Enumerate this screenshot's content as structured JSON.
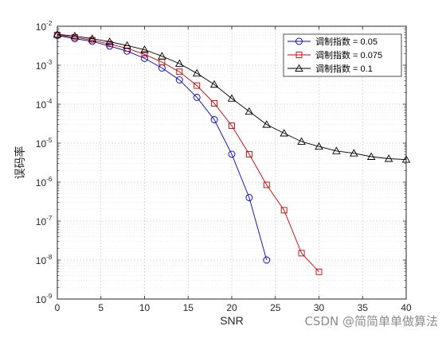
{
  "chart_data": {
    "type": "line",
    "xlabel": "SNR",
    "ylabel": "误码率",
    "y_scale": "log",
    "xlim": [
      0,
      40
    ],
    "ylim": [
      1e-09,
      0.01
    ],
    "x_ticks": [
      0,
      5,
      10,
      15,
      20,
      25,
      30,
      35,
      40
    ],
    "y_ticks": [
      {
        "value": 1e-09,
        "base": "10",
        "exp": "-9"
      },
      {
        "value": 1e-08,
        "base": "10",
        "exp": "-8"
      },
      {
        "value": 1e-07,
        "base": "10",
        "exp": "-7"
      },
      {
        "value": 1e-06,
        "base": "10",
        "exp": "-6"
      },
      {
        "value": 1e-05,
        "base": "10",
        "exp": "-5"
      },
      {
        "value": 0.0001,
        "base": "10",
        "exp": "-4"
      },
      {
        "value": 0.001,
        "base": "10",
        "exp": "-3"
      },
      {
        "value": 0.01,
        "base": "10",
        "exp": "-2"
      }
    ],
    "grid": true,
    "minor_grid": true,
    "legend_position": "top-right",
    "series": [
      {
        "name": "调制指数 = 0.05",
        "color": "#0000cc",
        "marker": "circle",
        "x": [
          0,
          2,
          4,
          6,
          8,
          10,
          12,
          14,
          16,
          18,
          20,
          22,
          24
        ],
        "y": [
          0.0058,
          0.0048,
          0.0041,
          0.0031,
          0.0023,
          0.0015,
          0.00085,
          0.00042,
          0.00015,
          4e-05,
          5.2e-06,
          4e-07,
          1e-08
        ]
      },
      {
        "name": "调制指数 = 0.075",
        "color": "#cc0000",
        "marker": "square",
        "x": [
          0,
          2,
          4,
          6,
          8,
          10,
          12,
          14,
          16,
          18,
          20,
          22,
          24,
          26,
          28,
          30
        ],
        "y": [
          0.006,
          0.0052,
          0.0044,
          0.0035,
          0.0027,
          0.0019,
          0.0012,
          0.00068,
          0.0003,
          0.000105,
          2.8e-05,
          5.2e-06,
          8.5e-07,
          1.9e-07,
          1.5e-08,
          5e-09
        ]
      },
      {
        "name": "调制指数 = 0.1",
        "color": "#000000",
        "marker": "triangle",
        "x": [
          0,
          2,
          4,
          6,
          8,
          10,
          12,
          14,
          16,
          18,
          20,
          22,
          24,
          26,
          28,
          30,
          32,
          34,
          36,
          38,
          40
        ],
        "y": [
          0.0062,
          0.0056,
          0.0048,
          0.004,
          0.0032,
          0.0025,
          0.0017,
          0.0011,
          0.00062,
          0.00032,
          0.00014,
          6.5e-05,
          3e-05,
          1.8e-05,
          1.1e-05,
          8.2e-06,
          6.3e-06,
          5.5e-06,
          4.5e-06,
          4e-06,
          3.8e-06
        ]
      }
    ]
  },
  "watermark": "CSDN @简简单单做算法"
}
